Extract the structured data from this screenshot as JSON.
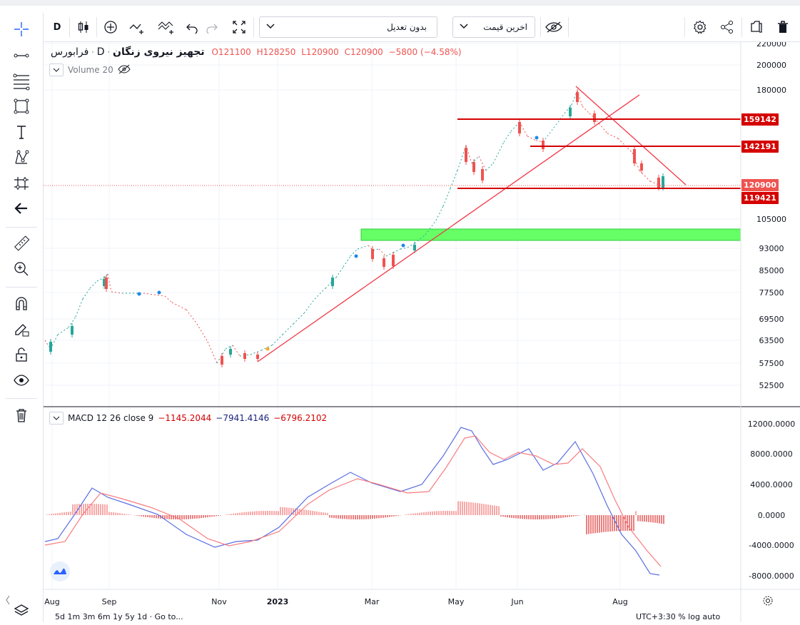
{
  "toolbar": {
    "interval": "D",
    "adjust_label": "بدون تعدیل",
    "price_type_label": "اخرین قیمت"
  },
  "legend": {
    "exchange": "فرابورس",
    "interval": "D",
    "symbol": "تجهیز نیروی زنگان",
    "open": "O121100",
    "high": "H128250",
    "low": "L120900",
    "close": "C120900",
    "change": "−5800 (−4.58%)"
  },
  "volume_label": "Volume 20",
  "macd": {
    "label": "MACD 12 26 close 9",
    "hist": "−1145.2044",
    "macd": "−7941.4146",
    "signal": "−6796.2102"
  },
  "price_axis": [
    "220000",
    "200000",
    "180000",
    "105000",
    "93000",
    "85000",
    "77500",
    "69500",
    "63500",
    "57500",
    "52500"
  ],
  "price_tags": [
    "159142",
    "142191",
    "120900",
    "119421"
  ],
  "macd_axis": [
    "12000.0000",
    "8000.0000",
    "4000.0000",
    "0.0000",
    "-4000.0000",
    "-8000.0000"
  ],
  "time_axis": [
    "Aug",
    "Sep",
    "Nov",
    "2023",
    "Mar",
    "May",
    "Jun",
    "Aug"
  ],
  "bottom_left": "5d  1m  3m  6m  1y  5y  1d  ·  Go to...",
  "bottom_right": "UTC+3:30  %  log  auto",
  "colors": {
    "up": "#26a69a",
    "down": "#ef5350",
    "level": "#d50000",
    "trend": "#f23645",
    "zone": "#66ff66",
    "macd": "#5b6ee1",
    "signal": "#f77c80"
  }
}
